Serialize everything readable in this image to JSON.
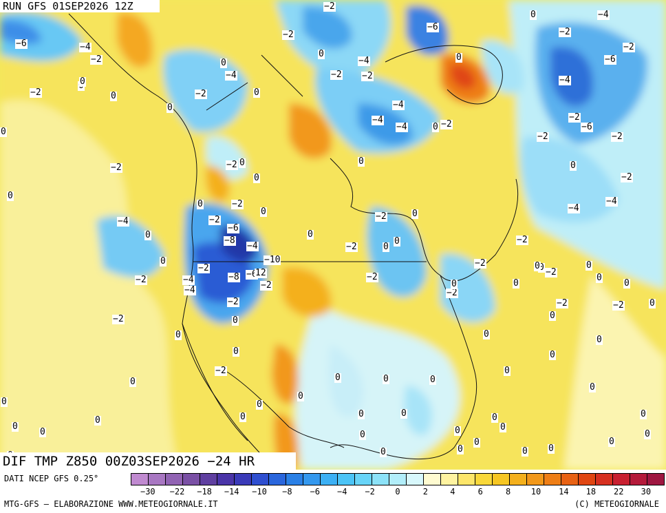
{
  "header": {
    "run_title": "RUN GFS 01SEP2026 12Z"
  },
  "field_title": "DIF TMP Z850 00Z03SEP2026 −24 HR",
  "footer": {
    "data_source": "DATI NCEP GFS 0.25°",
    "credit": "MTG-GFS — ELABORAZIONE WWW.METEOGIORNALE.IT",
    "copyright": "(C) METEOGIORNALE"
  },
  "colorbar": {
    "colors": [
      "#c08ad0",
      "#a877c2",
      "#9163b3",
      "#7a50a5",
      "#5f3fa0",
      "#4a34a8",
      "#3a3ab8",
      "#2f4fd0",
      "#2a66dc",
      "#2a80e6",
      "#3498ee",
      "#3cb0f4",
      "#4cc4f6",
      "#68d4f8",
      "#8ce2f8",
      "#b2eefa",
      "#d8f8fc",
      "#fffbd0",
      "#fff3a0",
      "#fde66a",
      "#f9d83a",
      "#f6c622",
      "#f4b01c",
      "#f2981a",
      "#ee7e16",
      "#e86214",
      "#e04612",
      "#d63020",
      "#c82030",
      "#b41a3a",
      "#9e1640"
    ],
    "tick_labels": [
      "−30",
      "−22",
      "−18",
      "−14",
      "−10",
      "−8",
      "−6",
      "−4",
      "−2",
      "0",
      "2",
      "4",
      "6",
      "8",
      "10",
      "14",
      "18",
      "22",
      "30"
    ]
  },
  "map_labels": [
    "−4",
    "−2",
    "−2",
    "−4",
    "−6",
    "0",
    "−6",
    "−4",
    "−4",
    "−2",
    "−2",
    "−6",
    "−4",
    "−2",
    "0",
    "0",
    "−2",
    "−4",
    "0",
    "−2",
    "0",
    "0",
    "−2",
    "−4",
    "−4",
    "0",
    "−2",
    "−2",
    "−2",
    "−2",
    "−2",
    "0",
    "−4",
    "−6",
    "0",
    "−4",
    "−2",
    "0",
    "0",
    "0",
    "−2",
    "0",
    "0",
    "−2",
    "0",
    "0",
    "−2",
    "−2",
    "0",
    "−2",
    "−2",
    "0",
    "−2",
    "0",
    "0",
    "0",
    "−2",
    "0",
    "−6",
    "−8",
    "−4",
    "−10",
    "−2",
    "−8",
    "−6",
    "12",
    "−2",
    "−4",
    "−4",
    "−2",
    "0",
    "0",
    "0",
    "−2",
    "−4",
    "−2",
    "0",
    "−2",
    "0",
    "0",
    "−2",
    "0",
    "−2",
    "0",
    "0",
    "−2",
    "−2",
    "0",
    "0",
    "0",
    "0",
    "0",
    "0",
    "0",
    "0",
    "0",
    "0",
    "0",
    "0",
    "0",
    "0",
    "0",
    "0",
    "0",
    "0",
    "0",
    "0",
    "0",
    "0",
    "0",
    "0",
    "0",
    "0",
    "0",
    "0",
    "0",
    "0",
    "0",
    "0",
    "−2",
    "0",
    "0",
    "0",
    "0",
    "0",
    "0",
    "0"
  ]
}
